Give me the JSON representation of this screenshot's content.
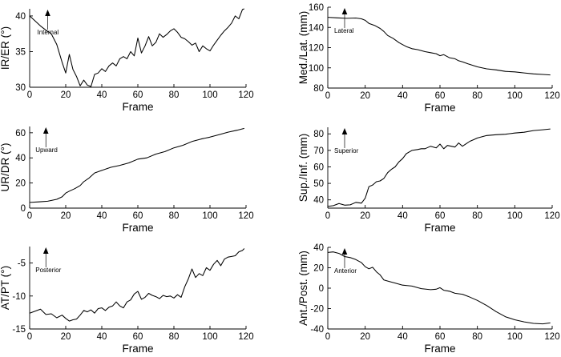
{
  "chart_data": [
    {
      "type": "line",
      "xlabel": "Frame",
      "ylabel": "IR/ER (°)",
      "xlim": [
        0,
        120
      ],
      "ylim": [
        30,
        41
      ],
      "xticks": [
        0,
        20,
        40,
        60,
        80,
        100,
        120
      ],
      "yticks": [
        30,
        35,
        40
      ],
      "annotation": {
        "label": "Internal",
        "frame": 10,
        "direction": "up"
      },
      "series": [
        {
          "x": [
            0,
            3,
            6,
            9,
            12,
            15,
            18,
            20,
            22,
            24,
            26,
            28,
            30,
            32,
            34,
            36,
            38,
            40,
            42,
            44,
            46,
            48,
            50,
            52,
            54,
            56,
            58,
            60,
            62,
            64,
            66,
            68,
            70,
            72,
            74,
            76,
            78,
            80,
            82,
            84,
            86,
            88,
            90,
            92,
            94,
            96,
            98,
            100,
            102,
            104,
            106,
            108,
            110,
            112,
            114,
            116,
            118,
            119
          ],
          "y": [
            40,
            39.3,
            38.6,
            38,
            37.5,
            36,
            33.5,
            32,
            34.6,
            32.5,
            31.5,
            30.2,
            31,
            30.3,
            30.1,
            31.8,
            32,
            32.6,
            32.2,
            33,
            33.4,
            33,
            34,
            34.3,
            34,
            35,
            34.4,
            36.9,
            34.8,
            35.8,
            37.1,
            35.8,
            36.3,
            37.5,
            37,
            37.4,
            37.9,
            38.2,
            37.7,
            37,
            36.8,
            36.4,
            35.9,
            36.2,
            35,
            35.8,
            35.4,
            35.1,
            35.9,
            36.6,
            37.3,
            37.9,
            38.4,
            39,
            40,
            39.6,
            40.9,
            41
          ]
        }
      ]
    },
    {
      "type": "line",
      "xlabel": "Frame",
      "ylabel": "Med./Lat. (mm)",
      "xlim": [
        0,
        120
      ],
      "ylim": [
        80,
        160
      ],
      "xticks": [
        0,
        20,
        40,
        60,
        80,
        100,
        120
      ],
      "yticks": [
        80,
        100,
        120,
        140,
        160
      ],
      "annotation": {
        "label": "Lateral",
        "frame": 9,
        "direction": "up"
      },
      "series": [
        {
          "x": [
            0,
            5,
            10,
            15,
            18,
            20,
            22,
            25,
            28,
            30,
            32,
            35,
            38,
            40,
            42,
            45,
            48,
            50,
            52,
            55,
            58,
            60,
            62,
            65,
            68,
            70,
            72,
            75,
            80,
            85,
            90,
            95,
            100,
            105,
            110,
            115,
            119
          ],
          "y": [
            150,
            149.5,
            149,
            149.3,
            148.5,
            147,
            144,
            142,
            139,
            136,
            132,
            129,
            125,
            123,
            121,
            119,
            118,
            117,
            116,
            115,
            114,
            112,
            113,
            110,
            109,
            107,
            106,
            104,
            101,
            99,
            98,
            96.5,
            96,
            95,
            94,
            93.5,
            93
          ]
        }
      ]
    },
    {
      "type": "line",
      "xlabel": "Frame",
      "ylabel": "UR/DR (°)",
      "xlim": [
        0,
        120
      ],
      "ylim": [
        0,
        65
      ],
      "xticks": [
        0,
        20,
        40,
        60,
        80,
        100,
        120
      ],
      "yticks": [
        0,
        20,
        40,
        60
      ],
      "annotation": {
        "label": "Upward",
        "frame": 9,
        "direction": "up"
      },
      "series": [
        {
          "x": [
            0,
            5,
            10,
            15,
            18,
            20,
            22,
            25,
            28,
            30,
            33,
            36,
            40,
            45,
            50,
            55,
            60,
            65,
            70,
            75,
            80,
            85,
            90,
            95,
            100,
            105,
            110,
            115,
            119
          ],
          "y": [
            4.5,
            5,
            5.5,
            7,
            9,
            12,
            13.5,
            15.5,
            18,
            21,
            24,
            28,
            30,
            32.5,
            34,
            36,
            39,
            40,
            43,
            45,
            48,
            50,
            53,
            55,
            56.5,
            58.5,
            60.5,
            62,
            63.5
          ]
        }
      ]
    },
    {
      "type": "line",
      "xlabel": "Frame",
      "ylabel": "Sup./Inf. (mm)",
      "xlim": [
        0,
        120
      ],
      "ylim": [
        35,
        84
      ],
      "xticks": [
        0,
        20,
        40,
        60,
        80,
        100,
        120
      ],
      "yticks": [
        40,
        50,
        60,
        70,
        80
      ],
      "annotation": {
        "label": "Superior",
        "frame": 9,
        "direction": "up"
      },
      "series": [
        {
          "x": [
            0,
            3,
            6,
            9,
            12,
            15,
            18,
            20,
            22,
            24,
            26,
            28,
            30,
            32,
            34,
            36,
            38,
            40,
            42,
            45,
            48,
            50,
            52,
            55,
            58,
            60,
            62,
            64,
            66,
            68,
            70,
            72,
            74,
            76,
            78,
            80,
            85,
            90,
            95,
            100,
            105,
            110,
            115,
            119
          ],
          "y": [
            36,
            36.5,
            37.8,
            36.8,
            37,
            38.5,
            38,
            41,
            48,
            49,
            51,
            51.5,
            53,
            56.5,
            58.5,
            60,
            63,
            65,
            68,
            70,
            70.5,
            71,
            71,
            72.5,
            71.5,
            73.8,
            71,
            73,
            72.5,
            72,
            74.5,
            72.5,
            74,
            75.5,
            76.5,
            77.5,
            79,
            79.5,
            79.8,
            80.5,
            81,
            82,
            82.5,
            83
          ]
        }
      ]
    },
    {
      "type": "line",
      "xlabel": "Frame",
      "ylabel": "AT/PT (°)",
      "xlim": [
        0,
        120
      ],
      "ylim": [
        -15,
        -2.5
      ],
      "xticks": [
        0,
        20,
        40,
        60,
        80,
        100,
        120
      ],
      "yticks": [
        -15,
        -10,
        -5
      ],
      "annotation": {
        "label": "Posterior",
        "frame": 9,
        "direction": "up"
      },
      "series": [
        {
          "x": [
            0,
            3,
            6,
            9,
            12,
            15,
            18,
            20,
            22,
            24,
            26,
            28,
            30,
            32,
            34,
            36,
            38,
            40,
            42,
            44,
            46,
            48,
            50,
            52,
            54,
            56,
            58,
            60,
            62,
            64,
            66,
            68,
            70,
            72,
            74,
            76,
            78,
            80,
            82,
            84,
            86,
            88,
            90,
            92,
            94,
            96,
            98,
            100,
            102,
            104,
            106,
            108,
            110,
            112,
            114,
            116,
            118,
            119
          ],
          "y": [
            -12.6,
            -12.3,
            -12,
            -12.8,
            -12.7,
            -13.3,
            -12.9,
            -13.4,
            -13.8,
            -13.6,
            -13.5,
            -12.9,
            -12.2,
            -12.4,
            -12.1,
            -12.6,
            -11.9,
            -11.8,
            -12.2,
            -11.7,
            -11.5,
            -10.9,
            -11.5,
            -11.8,
            -10.9,
            -10.6,
            -9.7,
            -9.3,
            -10.5,
            -10.2,
            -9.6,
            -9.9,
            -10.1,
            -10.4,
            -9.9,
            -10.1,
            -10,
            -10.3,
            -9.8,
            -10.2,
            -8.6,
            -7.4,
            -5.9,
            -7.2,
            -6.6,
            -6.9,
            -5.7,
            -6.1,
            -5.2,
            -4.6,
            -5.4,
            -4.4,
            -4.1,
            -4,
            -3.9,
            -3.3,
            -3.1,
            -2.8
          ]
        }
      ]
    },
    {
      "type": "line",
      "xlabel": "Frame",
      "ylabel": "Ant./Post. (mm)",
      "xlim": [
        0,
        120
      ],
      "ylim": [
        -40,
        40
      ],
      "xticks": [
        0,
        20,
        40,
        60,
        80,
        100,
        120
      ],
      "yticks": [
        -40,
        -20,
        0,
        20,
        40
      ],
      "annotation": {
        "label": "Anterior",
        "frame": 9,
        "direction": "up"
      },
      "series": [
        {
          "x": [
            0,
            3,
            6,
            9,
            12,
            15,
            18,
            20,
            22,
            24,
            26,
            28,
            30,
            33,
            36,
            40,
            45,
            50,
            55,
            58,
            60,
            62,
            65,
            68,
            70,
            72,
            75,
            80,
            85,
            90,
            95,
            100,
            105,
            110,
            115,
            119
          ],
          "y": [
            35,
            35.5,
            34,
            31,
            30,
            28,
            25,
            21,
            19,
            20.5,
            16,
            13,
            8,
            6.5,
            5,
            3,
            2,
            -0.5,
            -1.5,
            -1,
            0.5,
            -2,
            -3,
            -5,
            -5.5,
            -6,
            -8,
            -12,
            -17,
            -23,
            -28,
            -31,
            -33,
            -34.5,
            -35,
            -34
          ]
        }
      ]
    }
  ]
}
